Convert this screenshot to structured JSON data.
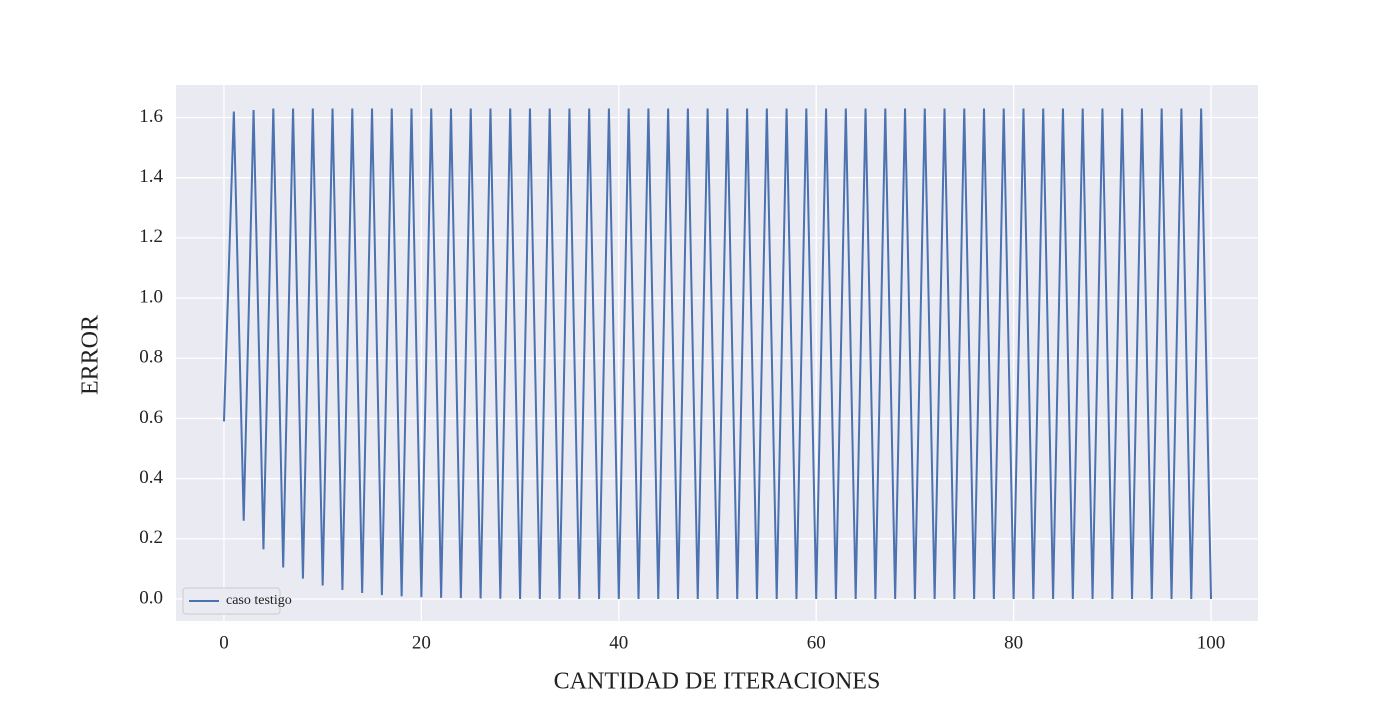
{
  "chart_data": {
    "type": "line",
    "xlabel": "CANTIDAD DE ITERACIONES",
    "ylabel": "ERROR",
    "x": [
      0,
      1,
      2,
      3,
      4,
      5,
      6,
      7,
      8,
      9,
      10,
      11,
      12,
      13,
      14,
      15,
      16,
      17,
      18,
      19,
      20,
      21,
      22,
      23,
      24,
      25,
      26,
      27,
      28,
      29,
      30,
      31,
      32,
      33,
      34,
      35,
      36,
      37,
      38,
      39,
      40,
      41,
      42,
      43,
      44,
      45,
      46,
      47,
      48,
      49,
      50,
      51,
      52,
      53,
      54,
      55,
      56,
      57,
      58,
      59,
      60,
      61,
      62,
      63,
      64,
      65,
      66,
      67,
      68,
      69,
      70,
      71,
      72,
      73,
      74,
      75,
      76,
      77,
      78,
      79,
      80,
      81,
      82,
      83,
      84,
      85,
      86,
      87,
      88,
      89,
      90,
      91,
      92,
      93,
      94,
      95,
      96,
      97,
      98,
      99,
      100
    ],
    "series": [
      {
        "name": "caso testigo",
        "color": "#4c72b0",
        "values": [
          0.59,
          1.62,
          0.26,
          1.625,
          0.165,
          1.63,
          0.105,
          1.63,
          0.068,
          1.63,
          0.045,
          1.63,
          0.03,
          1.63,
          0.02,
          1.63,
          0.013,
          1.63,
          0.009,
          1.63,
          0.006,
          1.63,
          0.004,
          1.63,
          0.003,
          1.63,
          0.002,
          1.63,
          0.001,
          1.63,
          0,
          1.63,
          0,
          1.63,
          0,
          1.63,
          0,
          1.63,
          0,
          1.63,
          0,
          1.63,
          0,
          1.63,
          0,
          1.63,
          0,
          1.63,
          0,
          1.63,
          0,
          1.63,
          0,
          1.63,
          0,
          1.63,
          0,
          1.63,
          0,
          1.63,
          0,
          1.63,
          0,
          1.63,
          0,
          1.63,
          0,
          1.63,
          0,
          1.63,
          0,
          1.63,
          0,
          1.63,
          0,
          1.63,
          0,
          1.63,
          0,
          1.63,
          0,
          1.63,
          0,
          1.63,
          0,
          1.63,
          0,
          1.63,
          0,
          1.63,
          0,
          1.63,
          0,
          1.63,
          0,
          1.63,
          0,
          1.63,
          0,
          1.63,
          0
        ]
      }
    ],
    "xlim": [
      -4.86,
      104.76
    ],
    "ylim": [
      -0.073,
      1.708
    ],
    "xticks": [
      0,
      20,
      40,
      60,
      80,
      100
    ],
    "yticks": [
      {
        "value": 0,
        "label": "0.0"
      },
      0.2,
      0.4,
      0.6,
      0.8,
      {
        "value": 1,
        "label": "1.0"
      },
      1.2,
      1.4,
      1.6
    ],
    "grid": true,
    "legend": "lower left"
  }
}
